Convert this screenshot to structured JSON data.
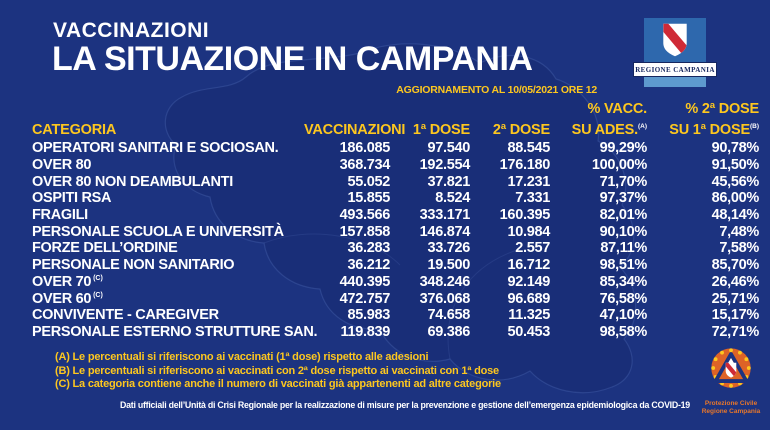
{
  "page": {
    "background": "#1c3380",
    "accent_yellow": "#fdc71f",
    "text_white": "#ffffff",
    "logo_blue": "#2e68ad",
    "logo_light_blue": "#5e9ace",
    "shield_red": "#cf2a36",
    "protezione_orange": "#dd6327"
  },
  "chart_data": {
    "type": "table",
    "kicker": "VACCINAZIONI",
    "title": "LA SITUAZIONE IN CAMPANIA",
    "updated": "AGGIORNAMENTO AL 10/05/2021 ORE 12",
    "columns": {
      "categoria": "CATEGORIA",
      "vaccinazioni": "VACCINAZIONI",
      "dose1": "1ª DOSE",
      "dose2": "2ª DOSE",
      "pct_ades": {
        "line1": "% VACC.",
        "line2": "SU ADES.",
        "sup": "(A)"
      },
      "pct_dose1": {
        "line1": "% 2ª DOSE",
        "line2": "SU 1ª DOSE",
        "sup": "(B)"
      }
    },
    "rows": [
      {
        "categoria": "OPERATORI SANITARI E SOCIOSAN.",
        "sup": "",
        "vaccinazioni": "186.085",
        "dose1": "97.540",
        "dose2": "88.545",
        "pct_ades": "99,29%",
        "pct_dose1": "90,78%"
      },
      {
        "categoria": "OVER 80",
        "sup": "",
        "vaccinazioni": "368.734",
        "dose1": "192.554",
        "dose2": "176.180",
        "pct_ades": "100,00%",
        "pct_dose1": "91,50%"
      },
      {
        "categoria": "OVER 80 NON DEAMBULANTI",
        "sup": "",
        "vaccinazioni": "55.052",
        "dose1": "37.821",
        "dose2": "17.231",
        "pct_ades": "71,70%",
        "pct_dose1": "45,56%"
      },
      {
        "categoria": "OSPITI RSA",
        "sup": "",
        "vaccinazioni": "15.855",
        "dose1": "8.524",
        "dose2": "7.331",
        "pct_ades": "97,37%",
        "pct_dose1": "86,00%"
      },
      {
        "categoria": "FRAGILI",
        "sup": "",
        "vaccinazioni": "493.566",
        "dose1": "333.171",
        "dose2": "160.395",
        "pct_ades": "82,01%",
        "pct_dose1": "48,14%"
      },
      {
        "categoria": "PERSONALE SCUOLA E UNIVERSITÀ",
        "sup": "",
        "vaccinazioni": "157.858",
        "dose1": "146.874",
        "dose2": "10.984",
        "pct_ades": "90,10%",
        "pct_dose1": "7,48%"
      },
      {
        "categoria": "FORZE DELL’ORDINE",
        "sup": "",
        "vaccinazioni": "36.283",
        "dose1": "33.726",
        "dose2": "2.557",
        "pct_ades": "87,11%",
        "pct_dose1": "7,58%"
      },
      {
        "categoria": "PERSONALE NON SANITARIO",
        "sup": "",
        "vaccinazioni": "36.212",
        "dose1": "19.500",
        "dose2": "16.712",
        "pct_ades": "98,51%",
        "pct_dose1": "85,70%"
      },
      {
        "categoria": "OVER 70",
        "sup": "(C)",
        "vaccinazioni": "440.395",
        "dose1": "348.246",
        "dose2": "92.149",
        "pct_ades": "85,34%",
        "pct_dose1": "26,46%"
      },
      {
        "categoria": "OVER 60",
        "sup": "(C)",
        "vaccinazioni": "472.757",
        "dose1": "376.068",
        "dose2": "96.689",
        "pct_ades": "76,58%",
        "pct_dose1": "25,71%"
      },
      {
        "categoria": "CONVIVENTE - CAREGIVER",
        "sup": "",
        "vaccinazioni": "85.983",
        "dose1": "74.658",
        "dose2": "11.325",
        "pct_ades": "47,10%",
        "pct_dose1": "15,17%"
      },
      {
        "categoria": "PERSONALE ESTERNO STRUTTURE SAN.",
        "sup": "",
        "vaccinazioni": "119.839",
        "dose1": "69.386",
        "dose2": "50.453",
        "pct_ades": "98,58%",
        "pct_dose1": "72,71%"
      }
    ],
    "footnotes": [
      "(A) Le percentuali si riferiscono ai vaccinati (1ª dose) rispetto alle adesioni",
      "(B) Le percentuali si riferiscono ai vaccinati con 2ª dose rispetto ai vaccinati con 1ª dose",
      "(C) La categoria contiene anche il numero di vaccinati già appartenenti ad altre categorie"
    ]
  },
  "region_logo": {
    "label": "REGIONE CAMPANIA"
  },
  "footer": {
    "text": "Dati ufficiali dell’Unità di Crisi Regionale per la realizzazione di misure per la prevenzione e gestione dell’emergenza epidemiologica da COVID-19"
  },
  "protezione_logo": {
    "caption_line1": "Protezione Civile",
    "caption_line2": "Regione Campania"
  }
}
